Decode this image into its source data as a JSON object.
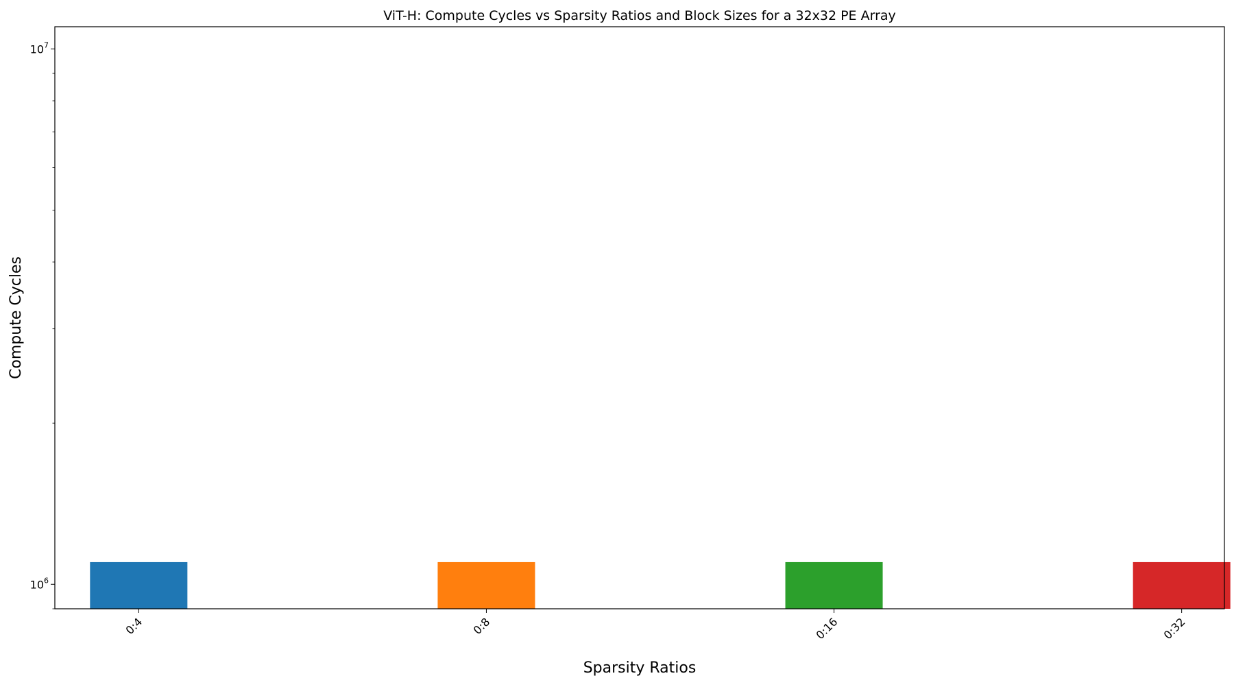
{
  "chart_data": {
    "type": "bar",
    "title": "ViT-H: Compute Cycles vs Sparsity Ratios and Block Sizes for a 32x32 PE Array",
    "xlabel": "Sparsity Ratios",
    "ylabel": "Compute Cycles",
    "categories": [
      "0:4",
      "0:8",
      "0:16",
      "0:32"
    ],
    "values": [
      1100000,
      1100000,
      1100000,
      1100000
    ],
    "colors": [
      "#1f77b4",
      "#ff7f0e",
      "#2ca02c",
      "#d62728"
    ],
    "yscale": "log",
    "ylim": [
      900000,
      11000000
    ],
    "yticks_major": [
      {
        "value": 1000000,
        "base": "10",
        "exp": "6"
      },
      {
        "value": 10000000,
        "base": "10",
        "exp": "7"
      }
    ],
    "grid": false,
    "x_tick_rotation": 45
  }
}
